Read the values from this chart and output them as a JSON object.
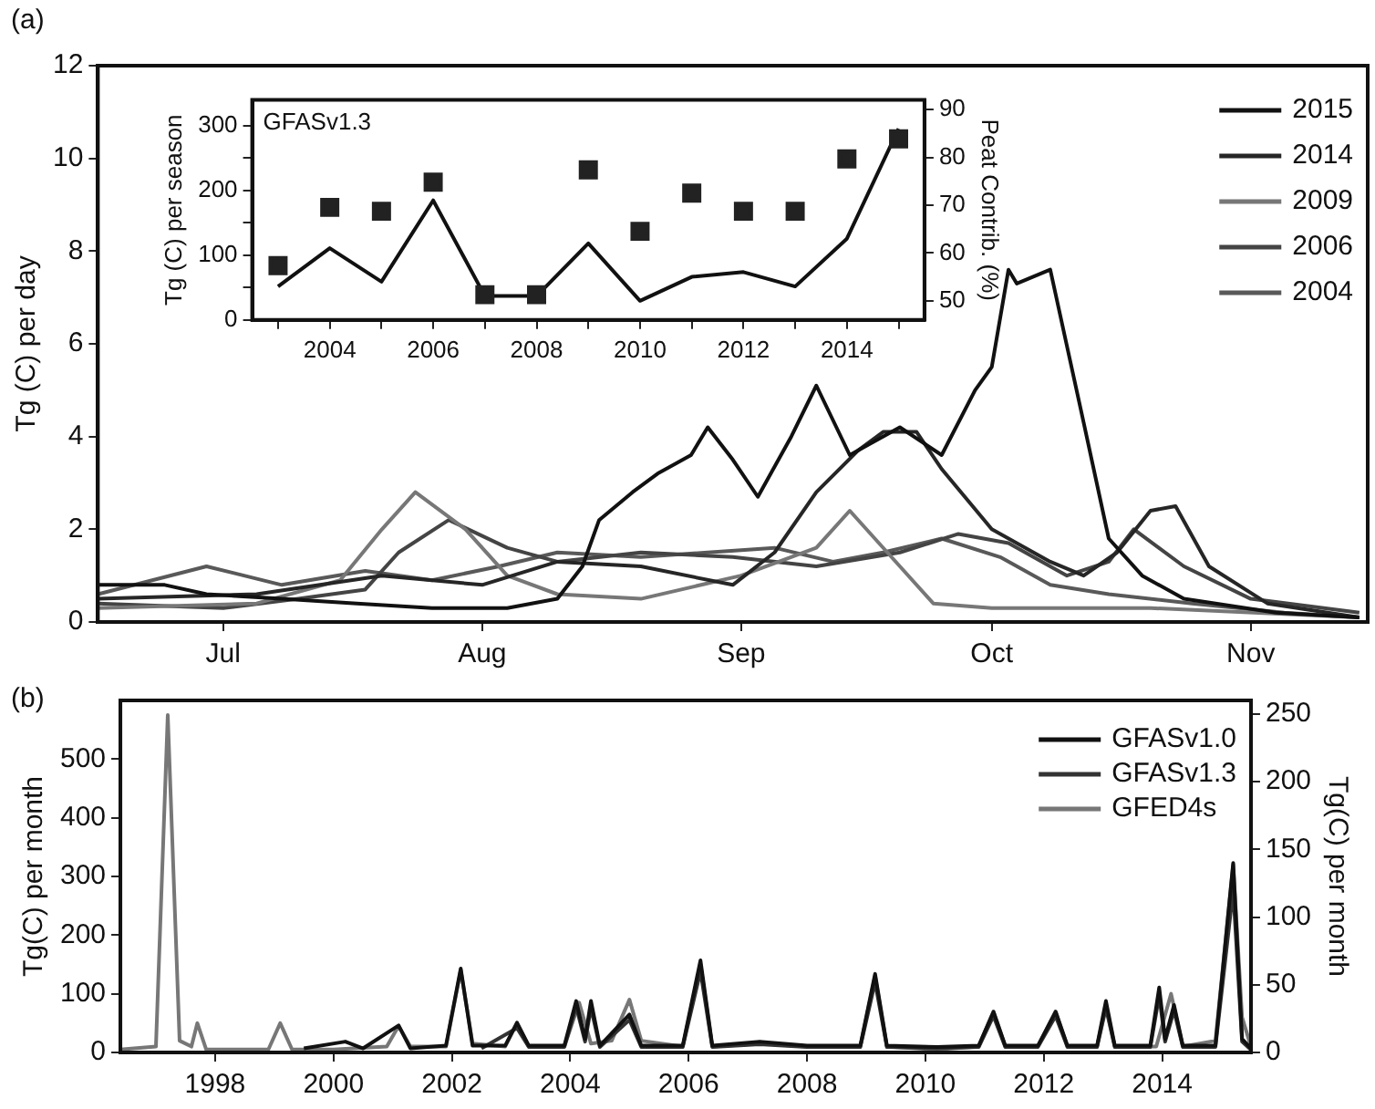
{
  "chart_data": [
    {
      "type": "line",
      "ylabel": "Tg (C) per day",
      "annotations": [
        "(a)"
      ],
      "legend": "top right",
      "marker": "none",
      "xlim": [
        "--06-16",
        "--11-15"
      ],
      "xticks": [
        {
          "value": "--07-01",
          "label": "Jul"
        },
        {
          "value": "--08-01",
          "label": "Aug"
        },
        {
          "value": "--09-01",
          "label": "Sep"
        },
        {
          "value": "--10-01",
          "label": "Oct"
        },
        {
          "value": "--11-01",
          "label": "Nov"
        }
      ],
      "ylim": [
        0,
        12
      ],
      "yticks": [
        0,
        2,
        4,
        6,
        8,
        10,
        12
      ],
      "series": [
        {
          "name": "2015",
          "color": "#111111",
          "x": [
            "--06-16",
            "--06-24",
            "--06-29",
            "--07-08",
            "--07-17",
            "--07-26",
            "--08-04",
            "--08-10",
            "--08-13",
            "--08-15",
            "--08-19",
            "--08-22",
            "--08-26",
            "--08-28",
            "--08-31",
            "--09-03",
            "--09-07",
            "--09-10",
            "--09-14",
            "--09-16",
            "--09-20",
            "--09-25",
            "--09-29",
            "--10-01",
            "--10-03",
            "--10-04",
            "--10-08",
            "--10-12",
            "--10-15",
            "--10-19",
            "--10-24",
            "--11-04",
            "--11-14"
          ],
          "values": [
            0.8,
            0.8,
            0.6,
            0.5,
            0.4,
            0.3,
            0.3,
            0.5,
            1.2,
            2.2,
            2.8,
            3.2,
            3.6,
            4.2,
            3.5,
            2.7,
            4.0,
            5.1,
            3.6,
            3.8,
            4.2,
            3.6,
            5.0,
            5.5,
            7.6,
            7.3,
            7.6,
            4.3,
            1.8,
            1.0,
            0.5,
            0.2,
            0.1
          ]
        },
        {
          "name": "2014",
          "color": "#262626",
          "x": [
            "--06-16",
            "--07-05",
            "--07-20",
            "--08-01",
            "--08-10",
            "--08-20",
            "--08-31",
            "--09-05",
            "--09-10",
            "--09-15",
            "--09-18",
            "--09-22",
            "--09-25",
            "--10-01",
            "--10-08",
            "--10-12",
            "--10-16",
            "--10-20",
            "--10-23",
            "--10-27",
            "--11-03",
            "--11-14"
          ],
          "values": [
            0.5,
            0.6,
            1.0,
            0.8,
            1.3,
            1.2,
            0.8,
            1.5,
            2.8,
            3.7,
            4.1,
            4.1,
            3.3,
            2.0,
            1.3,
            1.0,
            1.5,
            2.4,
            2.5,
            1.2,
            0.4,
            0.1
          ]
        },
        {
          "name": "2009",
          "color": "#777777",
          "x": [
            "--06-16",
            "--07-05",
            "--07-15",
            "--07-20",
            "--07-24",
            "--07-30",
            "--08-04",
            "--08-10",
            "--08-20",
            "--09-01",
            "--09-10",
            "--09-14",
            "--09-20",
            "--09-24",
            "--10-01",
            "--10-20",
            "--11-14"
          ],
          "values": [
            0.3,
            0.4,
            0.9,
            2.0,
            2.8,
            2.0,
            1.0,
            0.6,
            0.5,
            1.0,
            1.6,
            2.4,
            1.2,
            0.4,
            0.3,
            0.3,
            0.1
          ]
        },
        {
          "name": "2006",
          "color": "#444444",
          "x": [
            "--06-16",
            "--07-01",
            "--07-10",
            "--07-18",
            "--07-22",
            "--07-28",
            "--08-04",
            "--08-10",
            "--08-20",
            "--08-31",
            "--09-10",
            "--09-20",
            "--09-27",
            "--10-03",
            "--10-10",
            "--10-15",
            "--10-18",
            "--10-24",
            "--11-01",
            "--11-14"
          ],
          "values": [
            0.4,
            0.3,
            0.5,
            0.7,
            1.5,
            2.2,
            1.6,
            1.3,
            1.5,
            1.4,
            1.2,
            1.5,
            1.9,
            1.7,
            1.0,
            1.3,
            2.0,
            1.2,
            0.5,
            0.2
          ]
        },
        {
          "name": "2004",
          "color": "#595959",
          "x": [
            "--06-16",
            "--06-29",
            "--07-08",
            "--07-18",
            "--07-26",
            "--08-03",
            "--08-10",
            "--08-20",
            "--08-28",
            "--09-05",
            "--09-12",
            "--09-18",
            "--09-25",
            "--10-02",
            "--10-08",
            "--10-15",
            "--10-25",
            "--11-05",
            "--11-14"
          ],
          "values": [
            0.6,
            1.2,
            0.8,
            1.1,
            0.9,
            1.2,
            1.5,
            1.4,
            1.5,
            1.6,
            1.3,
            1.5,
            1.8,
            1.4,
            0.8,
            0.6,
            0.4,
            0.2,
            0.1
          ]
        }
      ]
    },
    {
      "type": "line",
      "ylabel": "Tg (C) per season",
      "y2label": "Peat Contrib. (%)",
      "annotations": [
        "GFASv1.3"
      ],
      "x": [
        2003,
        2004,
        2005,
        2006,
        2007,
        2008,
        2009,
        2010,
        2011,
        2012,
        2013,
        2014,
        2015
      ],
      "xlim": [
        2002.5,
        2015.5
      ],
      "xticks": [
        {
          "value": 2003,
          "label": null
        },
        2004,
        {
          "value": 2005,
          "label": null
        },
        2006,
        {
          "value": 2007,
          "label": null
        },
        2008,
        {
          "value": 2009,
          "label": null
        },
        2010,
        {
          "value": 2011,
          "label": null
        },
        2012,
        {
          "value": 2013,
          "label": null
        },
        2014,
        {
          "value": 2015,
          "label": null
        }
      ],
      "ylim": [
        0,
        340
      ],
      "yticks": [
        0,
        {
          "value": 50,
          "label": null
        },
        100,
        {
          "value": 150,
          "label": null
        },
        200,
        {
          "value": 250,
          "label": null
        },
        300
      ],
      "y2lim": [
        46,
        92
      ],
      "y2ticks": [
        50,
        60,
        70,
        80,
        90
      ],
      "series": [
        {
          "type": "scatter",
          "marker": "square",
          "color": "#222222",
          "values": [
            84,
            174,
            168,
            213,
            39,
            39,
            232,
            137,
            196,
            168,
            168,
            249,
            280
          ]
        },
        {
          "type": "line",
          "marker": "none",
          "axis": "y2",
          "color": "#111111",
          "values": [
            53,
            61,
            54,
            71,
            51,
            51,
            62,
            50,
            55,
            56,
            53,
            63,
            86
          ]
        }
      ]
    },
    {
      "type": "line",
      "ylabel": "Tg(C) per month",
      "y2label": "Tg(C) per month",
      "annotations": [
        "(b)"
      ],
      "legend": "top right",
      "marker": "none",
      "xlim": [
        1996.9,
        2016.0
      ],
      "xticks": [
        {
          "value": 1998.5,
          "label": "1998"
        },
        {
          "value": 2000.5,
          "label": "2000"
        },
        {
          "value": 2002.5,
          "label": "2002"
        },
        {
          "value": 2004.5,
          "label": "2004"
        },
        {
          "value": 2006.5,
          "label": "2006"
        },
        {
          "value": 2008.5,
          "label": "2008"
        },
        {
          "value": 2010.5,
          "label": "2010"
        },
        {
          "value": 2012.5,
          "label": "2012"
        },
        {
          "value": 2014.5,
          "label": "2014"
        }
      ],
      "ylim": [
        0,
        600
      ],
      "yticks": [
        0,
        100,
        200,
        300,
        400,
        500
      ],
      "y2lim": [
        0,
        260
      ],
      "y2ticks": [
        0,
        50,
        100,
        150,
        200,
        250
      ],
      "series": [
        {
          "name": "GFASv1.0",
          "color": "#111111",
          "axis": "y2",
          "x": [
            2000.0,
            2000.7,
            2001.0,
            2001.6,
            2001.8,
            2002.4,
            2002.65,
            2002.85,
            2003.4,
            2003.6,
            2003.8,
            2004.4,
            2004.6,
            2004.75,
            2004.85,
            2005.0,
            2005.5,
            2005.7,
            2006.4,
            2006.7,
            2006.9,
            2007.7,
            2008.5,
            2009.4,
            2009.65,
            2009.85,
            2010.7,
            2011.4,
            2011.65,
            2011.85,
            2012.4,
            2012.7,
            2012.9,
            2013.4,
            2013.55,
            2013.7,
            2014.3,
            2014.45,
            2014.55,
            2014.7,
            2014.85,
            2015.4,
            2015.7,
            2015.85,
            2016.0
          ],
          "values": [
            3,
            8,
            3,
            20,
            3,
            5,
            62,
            5,
            5,
            22,
            5,
            5,
            38,
            10,
            38,
            5,
            28,
            5,
            5,
            68,
            5,
            8,
            5,
            5,
            58,
            5,
            4,
            5,
            30,
            5,
            5,
            30,
            5,
            5,
            38,
            5,
            5,
            48,
            10,
            35,
            5,
            5,
            140,
            10,
            3
          ]
        },
        {
          "name": "GFASv1.3",
          "color": "#333333",
          "axis": "y2",
          "x": [
            2003.0,
            2003.6,
            2003.8,
            2004.4,
            2004.6,
            2004.75,
            2004.85,
            2005.0,
            2005.5,
            2005.7,
            2006.4,
            2006.7,
            2006.9,
            2007.7,
            2008.5,
            2009.4,
            2009.65,
            2009.85,
            2010.7,
            2011.4,
            2011.65,
            2011.85,
            2012.4,
            2012.7,
            2012.9,
            2013.4,
            2013.55,
            2013.7,
            2014.3,
            2014.45,
            2014.55,
            2014.7,
            2014.85,
            2015.4,
            2015.7,
            2015.85,
            2016.0
          ],
          "values": [
            3,
            18,
            4,
            4,
            34,
            8,
            33,
            4,
            24,
            4,
            4,
            60,
            4,
            6,
            4,
            4,
            52,
            4,
            3,
            4,
            27,
            4,
            4,
            27,
            4,
            4,
            33,
            4,
            4,
            42,
            8,
            31,
            4,
            4,
            120,
            8,
            2
          ]
        },
        {
          "name": "GFED4s",
          "color": "#777777",
          "x": [
            1996.9,
            1997.5,
            1997.7,
            1997.9,
            1998.1,
            1998.2,
            1998.35,
            1999.4,
            1999.6,
            1999.8,
            2000.5,
            2001.4,
            2001.6,
            2001.8,
            2002.4,
            2002.65,
            2002.85,
            2003.4,
            2003.6,
            2003.8,
            2004.4,
            2004.65,
            2004.85,
            2005.2,
            2005.5,
            2005.7,
            2006.4,
            2006.7,
            2006.9,
            2007.7,
            2008.5,
            2009.4,
            2009.65,
            2009.85,
            2010.7,
            2011.4,
            2011.65,
            2011.85,
            2012.4,
            2012.7,
            2012.9,
            2013.4,
            2013.55,
            2013.7,
            2014.4,
            2014.65,
            2014.85,
            2015.4,
            2015.7,
            2015.85,
            2016.0
          ],
          "values": [
            5,
            10,
            575,
            20,
            10,
            50,
            5,
            5,
            50,
            5,
            5,
            10,
            45,
            10,
            10,
            140,
            15,
            10,
            50,
            10,
            10,
            85,
            15,
            20,
            90,
            20,
            10,
            150,
            10,
            15,
            10,
            10,
            130,
            10,
            5,
            10,
            70,
            10,
            10,
            70,
            10,
            10,
            80,
            10,
            10,
            100,
            10,
            20,
            320,
            60,
            10
          ]
        }
      ]
    }
  ]
}
